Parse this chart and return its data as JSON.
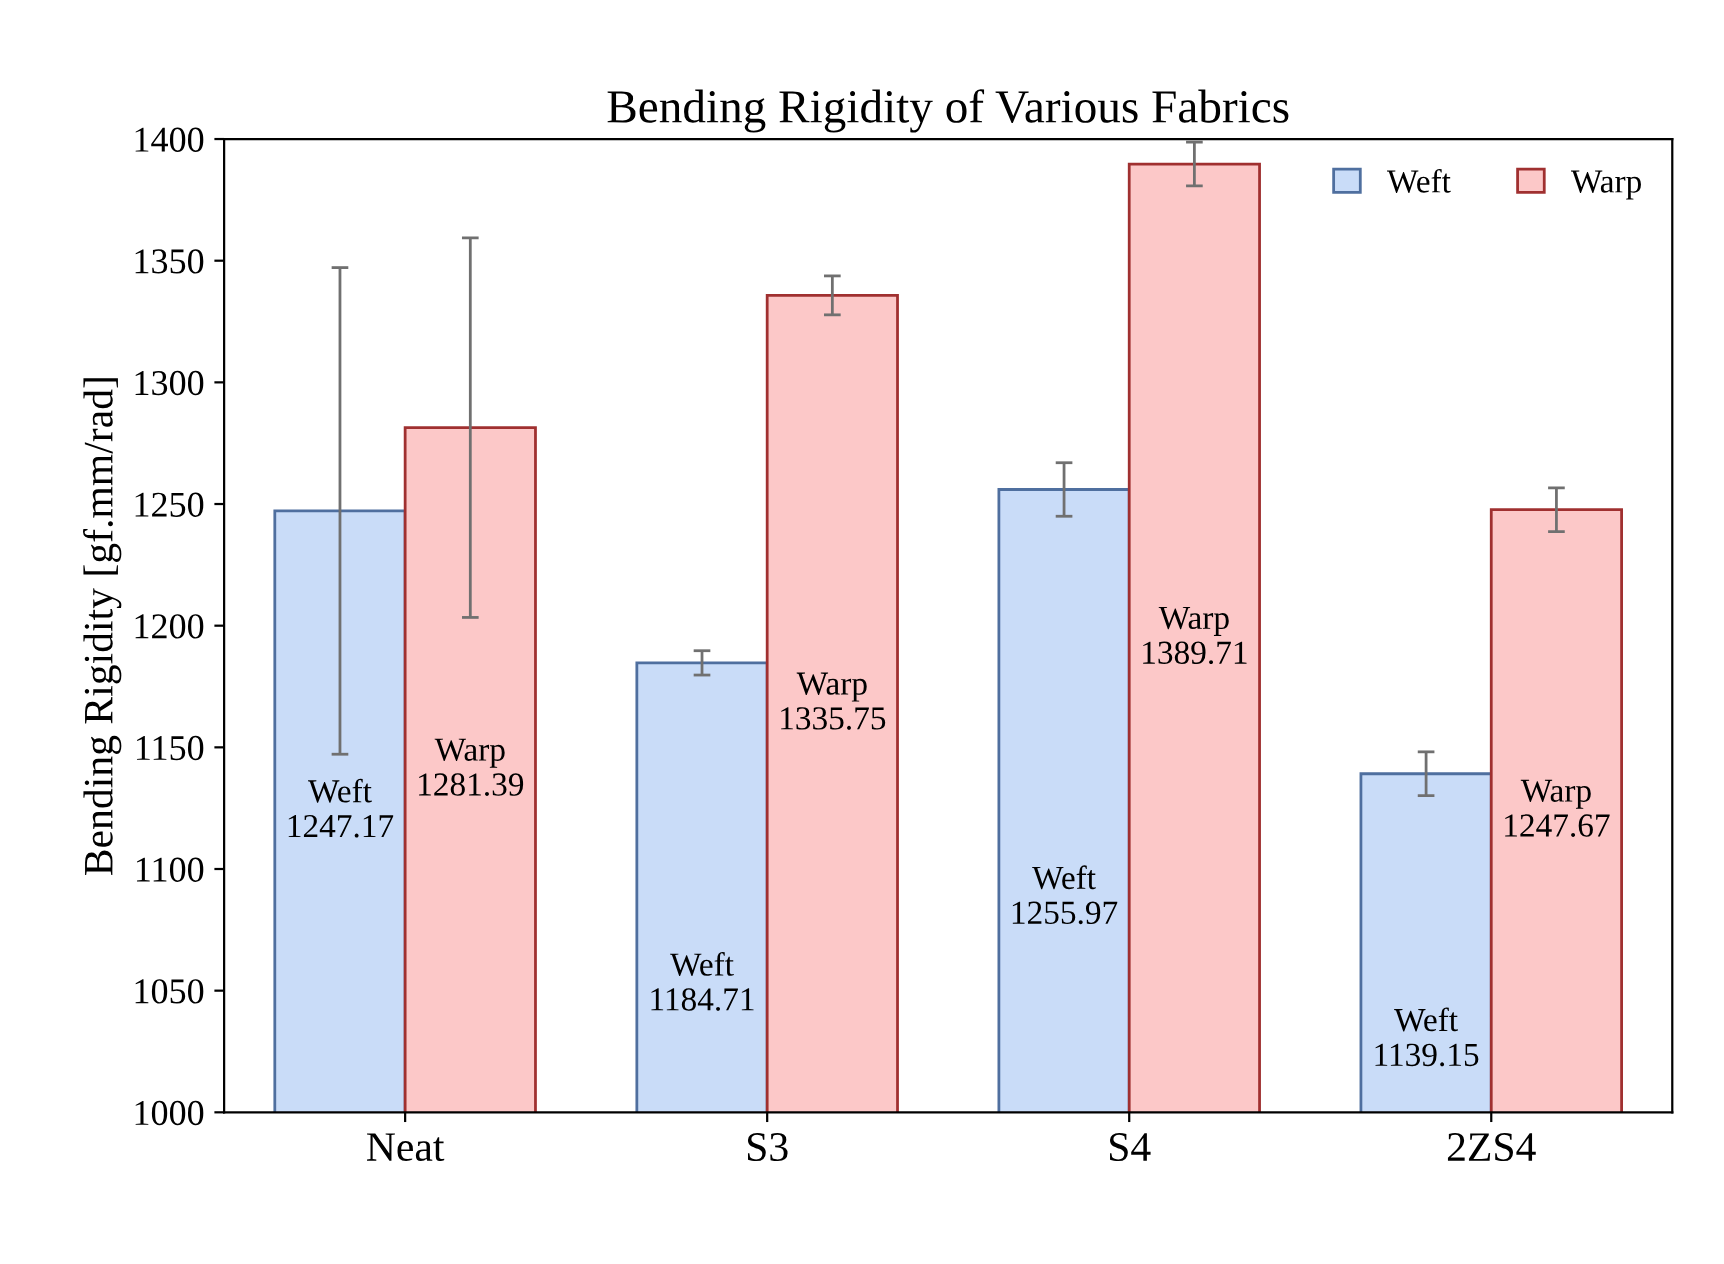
{
  "chart_data": {
    "type": "bar",
    "title": "Bending Rigidity of Various Fabrics",
    "ylabel": "Bending Rigidity [gf.mm/rad]",
    "categories": [
      "Neat",
      "S3",
      "S4",
      "2ZS4"
    ],
    "series": [
      {
        "name": "Weft",
        "color": "#c9dcf8",
        "values": [
          1247.17,
          1184.71,
          1255.97,
          1139.15
        ],
        "errors": [
          100,
          5,
          11,
          9
        ],
        "value_labels": [
          "Weft\n1247.17",
          "Weft\n1184.71",
          "Weft\n1255.97",
          "Weft\n1139.15"
        ]
      },
      {
        "name": "Warp",
        "color": "#fcc8c8",
        "values": [
          1281.39,
          1335.75,
          1389.71,
          1247.67
        ],
        "errors": [
          78,
          8,
          9,
          9
        ],
        "value_labels": [
          "Warp\n1281.39",
          "Warp\n1335.75",
          "Warp\n1389.71",
          "Warp\n1247.67"
        ]
      }
    ],
    "ylim": [
      1000,
      1400
    ],
    "yticks": [
      1000,
      1050,
      1100,
      1150,
      1200,
      1250,
      1300,
      1350,
      1400
    ],
    "legend": "top right",
    "grid": false
  }
}
